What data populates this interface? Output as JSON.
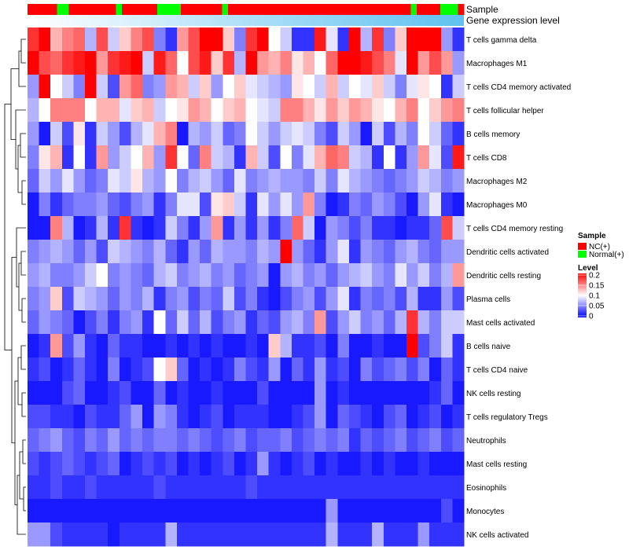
{
  "chart_data": {
    "type": "heatmap",
    "title": "",
    "annotation_tracks": [
      "Sample",
      "Gene expression level"
    ],
    "sample_groups": [
      0,
      0,
      0,
      0,
      0,
      1,
      1,
      0,
      0,
      0,
      0,
      0,
      0,
      0,
      0,
      1,
      0,
      0,
      0,
      0,
      0,
      0,
      1,
      1,
      1,
      1,
      0,
      0,
      0,
      0,
      0,
      0,
      0,
      1,
      0,
      0,
      0,
      0,
      0,
      0,
      0,
      0,
      0,
      0,
      0,
      0,
      0,
      0,
      0,
      0,
      0,
      0,
      0,
      0,
      0,
      0,
      0,
      0,
      0,
      0,
      0,
      0,
      0,
      0,
      0,
      1,
      0,
      0,
      0,
      0,
      1,
      1,
      1,
      0
    ],
    "rows": [
      "T cells gamma delta",
      "Macrophages M1",
      "T cells CD4 memory activated",
      "T cells follicular helper",
      "B cells memory",
      "T cells CD8",
      "Macrophages M2",
      "Macrophages M0",
      "T cells CD4 memory resting",
      "Dendritic cells activated",
      "Dendritic cells resting",
      "Plasma cells",
      "Mast cells activated",
      "B cells naive",
      "T cells CD4 naive",
      "NK cells resting",
      "T cells regulatory  Tregs",
      "Neutrophils",
      "Mast cells resting",
      "Eosinophils",
      "Monocytes",
      "NK cells activated"
    ],
    "values": [
      [
        0.18,
        0.21,
        0.13,
        0.15,
        0.16,
        0.07,
        0.17,
        0.08,
        0.12,
        0.15,
        0.17,
        0.05,
        0.02,
        0.14,
        0.17,
        0.2,
        0.2,
        0.12,
        0.05,
        0.18,
        0.21,
        0.1,
        0.08,
        0.02,
        0.02,
        0.19,
        0.09,
        0.02,
        0.2,
        0.07,
        0.18,
        0.05,
        0.12,
        0.2,
        0.22,
        0.2,
        0.06,
        0.02
      ],
      [
        0.2,
        0.17,
        0.16,
        0.18,
        0.19,
        0.21,
        0.14,
        0.18,
        0.19,
        0.21,
        0.08,
        0.19,
        0.16,
        0.1,
        0.17,
        0.19,
        0.12,
        0.18,
        0.07,
        0.2,
        0.14,
        0.13,
        0.15,
        0.11,
        0.13,
        0.1,
        0.16,
        0.2,
        0.2,
        0.19,
        0.17,
        0.15,
        0.09,
        0.2,
        0.14,
        0.17,
        0.14,
        0.06
      ],
      [
        0.06,
        0.21,
        0.1,
        0.08,
        0.05,
        0.21,
        0.08,
        0.03,
        0.14,
        0.16,
        0.05,
        0.06,
        0.14,
        0.13,
        0.08,
        0.12,
        0.06,
        0.1,
        0.12,
        0.09,
        0.08,
        0.07,
        0.06,
        0.11,
        0.1,
        0.08,
        0.13,
        0.08,
        0.1,
        0.09,
        0.12,
        0.08,
        0.05,
        0.09,
        0.11,
        0.1,
        0.02,
        0.08
      ],
      [
        0.07,
        0.1,
        0.15,
        0.15,
        0.15,
        0.1,
        0.13,
        0.13,
        0.09,
        0.12,
        0.13,
        0.08,
        0.1,
        0.11,
        0.14,
        0.13,
        0.1,
        0.12,
        0.13,
        0.1,
        0.09,
        0.08,
        0.15,
        0.15,
        0.13,
        0.11,
        0.14,
        0.12,
        0.14,
        0.13,
        0.11,
        0.1,
        0.13,
        0.15,
        0.1,
        0.12,
        0.14,
        0.15
      ],
      [
        0.06,
        0.01,
        0.08,
        0.03,
        0.11,
        0.02,
        0.08,
        0.06,
        0.03,
        0.07,
        0.09,
        0.13,
        0.15,
        0.01,
        0.07,
        0.06,
        0.08,
        0.04,
        0.05,
        0.1,
        0.08,
        0.06,
        0.08,
        0.09,
        0.08,
        0.05,
        0.03,
        0.08,
        0.06,
        0.01,
        0.08,
        0.03,
        0.07,
        0.05,
        0.1,
        0.08,
        0.04,
        0.02
      ],
      [
        0.05,
        0.11,
        0.13,
        0.02,
        0.1,
        0.02,
        0.14,
        0.06,
        0.08,
        0.1,
        0.13,
        0.06,
        0.18,
        0.1,
        0.04,
        0.15,
        0.08,
        0.07,
        0.02,
        0.13,
        0.08,
        0.03,
        0.1,
        0.05,
        0.09,
        0.13,
        0.16,
        0.15,
        0.08,
        0.07,
        0.02,
        0.1,
        0.02,
        0.06,
        0.14,
        0.09,
        0.03,
        0.19
      ],
      [
        0.04,
        0.08,
        0.06,
        0.09,
        0.06,
        0.04,
        0.05,
        0.09,
        0.08,
        0.11,
        0.07,
        0.06,
        0.1,
        0.05,
        0.07,
        0.08,
        0.06,
        0.04,
        0.09,
        0.05,
        0.06,
        0.07,
        0.06,
        0.06,
        0.05,
        0.08,
        0.05,
        0.09,
        0.07,
        0.06,
        0.05,
        0.04,
        0.05,
        0.06,
        0.08,
        0.07,
        0.05,
        0.06
      ],
      [
        0.01,
        0.05,
        0.02,
        0.04,
        0.05,
        0.05,
        0.06,
        0.04,
        0.03,
        0.05,
        0.06,
        0.02,
        0.05,
        0.09,
        0.09,
        0.03,
        0.11,
        0.12,
        0.08,
        0.02,
        0.09,
        0.06,
        0.09,
        0.06,
        0.14,
        0.05,
        0.01,
        0.02,
        0.05,
        0.04,
        0.06,
        0.05,
        0.03,
        0.01,
        0.06,
        0.09,
        0.02,
        0.01
      ],
      [
        0.01,
        0.01,
        0.15,
        0.07,
        0.01,
        0.02,
        0.07,
        0.02,
        0.18,
        0.02,
        0.01,
        0.02,
        0.08,
        0.05,
        0.02,
        0.06,
        0.14,
        0.02,
        0.06,
        0.02,
        0.06,
        0.02,
        0.05,
        0.16,
        0.08,
        0.01,
        0.06,
        0.05,
        0.03,
        0.05,
        0.02,
        0.02,
        0.01,
        0.02,
        0.02,
        0.04,
        0.17,
        0.08
      ],
      [
        0.05,
        0.06,
        0.07,
        0.06,
        0.04,
        0.06,
        0.03,
        0.08,
        0.07,
        0.06,
        0.05,
        0.07,
        0.04,
        0.02,
        0.06,
        0.04,
        0.07,
        0.06,
        0.06,
        0.05,
        0.07,
        0.06,
        0.2,
        0.06,
        0.04,
        0.02,
        0.06,
        0.09,
        0.02,
        0.06,
        0.05,
        0.04,
        0.06,
        0.07,
        0.05,
        0.04,
        0.06,
        0.06
      ],
      [
        0.06,
        0.07,
        0.05,
        0.05,
        0.06,
        0.08,
        0.1,
        0.05,
        0.06,
        0.05,
        0.04,
        0.07,
        0.08,
        0.05,
        0.06,
        0.07,
        0.05,
        0.06,
        0.04,
        0.05,
        0.06,
        0.01,
        0.06,
        0.07,
        0.05,
        0.06,
        0.04,
        0.06,
        0.07,
        0.08,
        0.06,
        0.05,
        0.09,
        0.06,
        0.08,
        0.05,
        0.07,
        0.14
      ],
      [
        0.05,
        0.06,
        0.12,
        0.03,
        0.08,
        0.07,
        0.06,
        0.04,
        0.06,
        0.05,
        0.07,
        0.02,
        0.05,
        0.06,
        0.03,
        0.05,
        0.04,
        0.08,
        0.03,
        0.05,
        0.02,
        0.01,
        0.03,
        0.05,
        0.06,
        0.03,
        0.06,
        0.09,
        0.02,
        0.05,
        0.04,
        0.05,
        0.03,
        0.07,
        0.02,
        0.02,
        0.06,
        0.03
      ],
      [
        0.04,
        0.06,
        0.05,
        0.04,
        0.01,
        0.03,
        0.05,
        0.02,
        0.05,
        0.06,
        0.02,
        0.1,
        0.04,
        0.08,
        0.04,
        0.07,
        0.03,
        0.05,
        0.06,
        0.02,
        0.04,
        0.03,
        0.06,
        0.07,
        0.05,
        0.14,
        0.03,
        0.06,
        0.08,
        0.05,
        0.06,
        0.04,
        0.07,
        0.18,
        0.07,
        0.05,
        0.08,
        0.08
      ],
      [
        0.01,
        0.02,
        0.14,
        0.03,
        0.06,
        0.02,
        0.01,
        0.04,
        0.02,
        0.02,
        0.01,
        0.01,
        0.02,
        0.01,
        0.02,
        0.01,
        0.02,
        0.01,
        0.01,
        0.02,
        0.01,
        0.12,
        0.07,
        0.02,
        0.02,
        0.03,
        0.01,
        0.05,
        0.01,
        0.01,
        0.02,
        0.01,
        0.01,
        0.22,
        0.03,
        0.05,
        0.08,
        0.02
      ],
      [
        0.02,
        0.03,
        0.01,
        0.02,
        0.04,
        0.02,
        0.01,
        0.05,
        0.01,
        0.02,
        0.03,
        0.1,
        0.12,
        0.04,
        0.01,
        0.02,
        0.01,
        0.02,
        0.05,
        0.03,
        0.02,
        0.06,
        0.01,
        0.04,
        0.02,
        0.06,
        0.02,
        0.03,
        0.01,
        0.05,
        0.03,
        0.04,
        0.05,
        0.03,
        0.05,
        0.01,
        0.04,
        0.02
      ],
      [
        0.01,
        0.01,
        0.01,
        0.03,
        0.04,
        0.01,
        0.01,
        0.02,
        0.03,
        0.01,
        0.01,
        0.04,
        0.01,
        0.02,
        0.01,
        0.01,
        0.02,
        0.01,
        0.01,
        0.01,
        0.03,
        0.01,
        0.01,
        0.01,
        0.01,
        0.06,
        0.01,
        0.02,
        0.01,
        0.01,
        0.01,
        0.01,
        0.01,
        0.01,
        0.01,
        0.02,
        0.04,
        0.01
      ],
      [
        0.03,
        0.03,
        0.02,
        0.02,
        0.01,
        0.03,
        0.02,
        0.02,
        0.04,
        0.06,
        0.01,
        0.06,
        0.05,
        0.02,
        0.01,
        0.02,
        0.03,
        0.01,
        0.02,
        0.02,
        0.02,
        0.01,
        0.01,
        0.02,
        0.03,
        0.06,
        0.01,
        0.04,
        0.03,
        0.02,
        0.01,
        0.03,
        0.04,
        0.01,
        0.02,
        0.03,
        0.01,
        0.02
      ],
      [
        0.04,
        0.05,
        0.06,
        0.04,
        0.03,
        0.05,
        0.04,
        0.06,
        0.04,
        0.05,
        0.04,
        0.05,
        0.05,
        0.04,
        0.05,
        0.04,
        0.03,
        0.04,
        0.05,
        0.03,
        0.04,
        0.04,
        0.05,
        0.03,
        0.04,
        0.05,
        0.04,
        0.05,
        0.02,
        0.04,
        0.03,
        0.04,
        0.05,
        0.03,
        0.04,
        0.05,
        0.03,
        0.04
      ],
      [
        0.03,
        0.02,
        0.03,
        0.04,
        0.03,
        0.02,
        0.03,
        0.04,
        0.01,
        0.02,
        0.03,
        0.02,
        0.03,
        0.01,
        0.02,
        0.01,
        0.02,
        0.03,
        0.01,
        0.02,
        0.06,
        0.02,
        0.01,
        0.02,
        0.03,
        0.01,
        0.02,
        0.01,
        0.01,
        0.02,
        0.01,
        0.02,
        0.01,
        0.01,
        0.02,
        0.01,
        0.01,
        0.01
      ],
      [
        0.02,
        0.02,
        0.03,
        0.02,
        0.02,
        0.03,
        0.02,
        0.02,
        0.02,
        0.02,
        0.02,
        0.03,
        0.02,
        0.02,
        0.02,
        0.02,
        0.02,
        0.02,
        0.02,
        0.03,
        0.02,
        0.02,
        0.02,
        0.02,
        0.02,
        0.02,
        0.02,
        0.02,
        0.02,
        0.02,
        0.02,
        0.02,
        0.02,
        0.02,
        0.02,
        0.02,
        0.02,
        0.02
      ],
      [
        0.01,
        0.01,
        0.01,
        0.01,
        0.01,
        0.01,
        0.01,
        0.01,
        0.01,
        0.01,
        0.01,
        0.01,
        0.01,
        0.01,
        0.01,
        0.01,
        0.01,
        0.01,
        0.01,
        0.01,
        0.01,
        0.01,
        0.01,
        0.01,
        0.01,
        0.01,
        0.06,
        0.01,
        0.01,
        0.01,
        0.01,
        0.01,
        0.01,
        0.01,
        0.01,
        0.01,
        0.03,
        0.01
      ],
      [
        0.06,
        0.06,
        0.03,
        0.02,
        0.02,
        0.02,
        0.02,
        0.01,
        0.02,
        0.02,
        0.02,
        0.02,
        0.07,
        0.02,
        0.02,
        0.02,
        0.02,
        0.02,
        0.02,
        0.02,
        0.02,
        0.02,
        0.02,
        0.02,
        0.02,
        0.02,
        0.07,
        0.02,
        0.02,
        0.02,
        0.07,
        0.02,
        0.02,
        0.02,
        0.06,
        0.02,
        0.02,
        0.02
      ]
    ],
    "color_scale": {
      "min": 0,
      "max": 0.2,
      "low_color": "#0000ff",
      "mid_color": "#ffffff",
      "high_color": "#ff0000"
    },
    "legend": {
      "sample_title": "Sample",
      "sample_entries": [
        {
          "label": "NC(+)",
          "color": "#ff0000"
        },
        {
          "label": "Normal(+)",
          "color": "#00ff00"
        }
      ],
      "level_title": "Level",
      "level_ticks": [
        "0.2",
        "0.15",
        "0.1",
        "0.05",
        "0"
      ],
      "placement": "right"
    },
    "expression_bar_colors": [
      "#ffffff",
      "#5ec1f0"
    ]
  }
}
